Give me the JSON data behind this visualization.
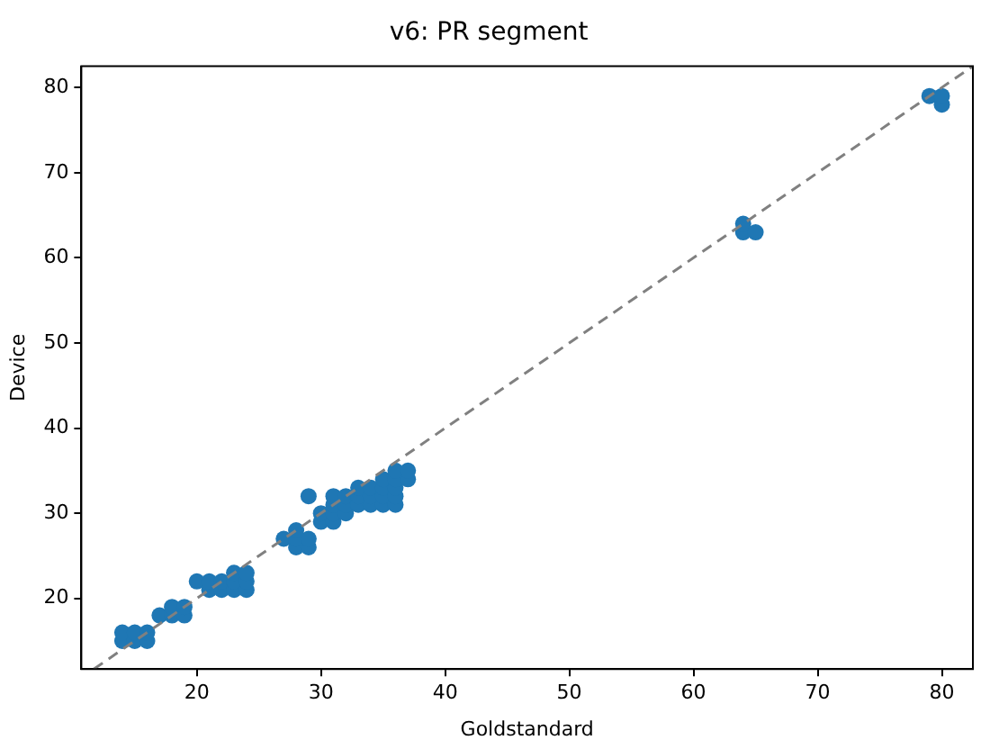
{
  "chart_data": {
    "type": "scatter",
    "title": "v6: PR segment",
    "xlabel": "Goldstandard",
    "ylabel": "Device",
    "xlim": [
      10.7,
      82.5
    ],
    "ylim": [
      11.7,
      82.5
    ],
    "xticks": [
      20,
      30,
      40,
      50,
      60,
      70,
      80
    ],
    "yticks": [
      20,
      30,
      40,
      50,
      60,
      70,
      80
    ],
    "grid": false,
    "legend": false,
    "marker": "circle",
    "series": [
      {
        "type": "line",
        "color": "#808080",
        "line_style": "dashed",
        "marker": "none",
        "x": [
          11.7,
          82.5
        ],
        "values": [
          11.7,
          82.5
        ]
      },
      {
        "type": "scatter",
        "color": "#1f77b4",
        "x": [
          14,
          14,
          15,
          15,
          16,
          16,
          17,
          18,
          18,
          19,
          19,
          20,
          21,
          21,
          22,
          22,
          23,
          23,
          23,
          24,
          24,
          24,
          27,
          28,
          28,
          28,
          29,
          29,
          29,
          30,
          30,
          31,
          31,
          31,
          31,
          32,
          32,
          32,
          33,
          33,
          33,
          34,
          34,
          34,
          35,
          35,
          35,
          35,
          36,
          36,
          36,
          36,
          36,
          37,
          37,
          64,
          64,
          65,
          79,
          80,
          80
        ],
        "values": [
          15,
          16,
          15,
          16,
          15,
          16,
          18,
          18,
          19,
          18,
          19,
          22,
          21,
          22,
          21,
          22,
          21,
          22,
          23,
          21,
          22,
          23,
          27,
          26,
          27,
          28,
          26,
          27,
          32,
          29,
          30,
          29,
          30,
          31,
          32,
          30,
          31,
          32,
          31,
          32,
          33,
          31,
          32,
          33,
          31,
          32,
          33,
          34,
          31,
          32,
          33,
          34,
          35,
          34,
          35,
          63,
          64,
          63,
          79,
          78,
          79
        ]
      }
    ]
  }
}
